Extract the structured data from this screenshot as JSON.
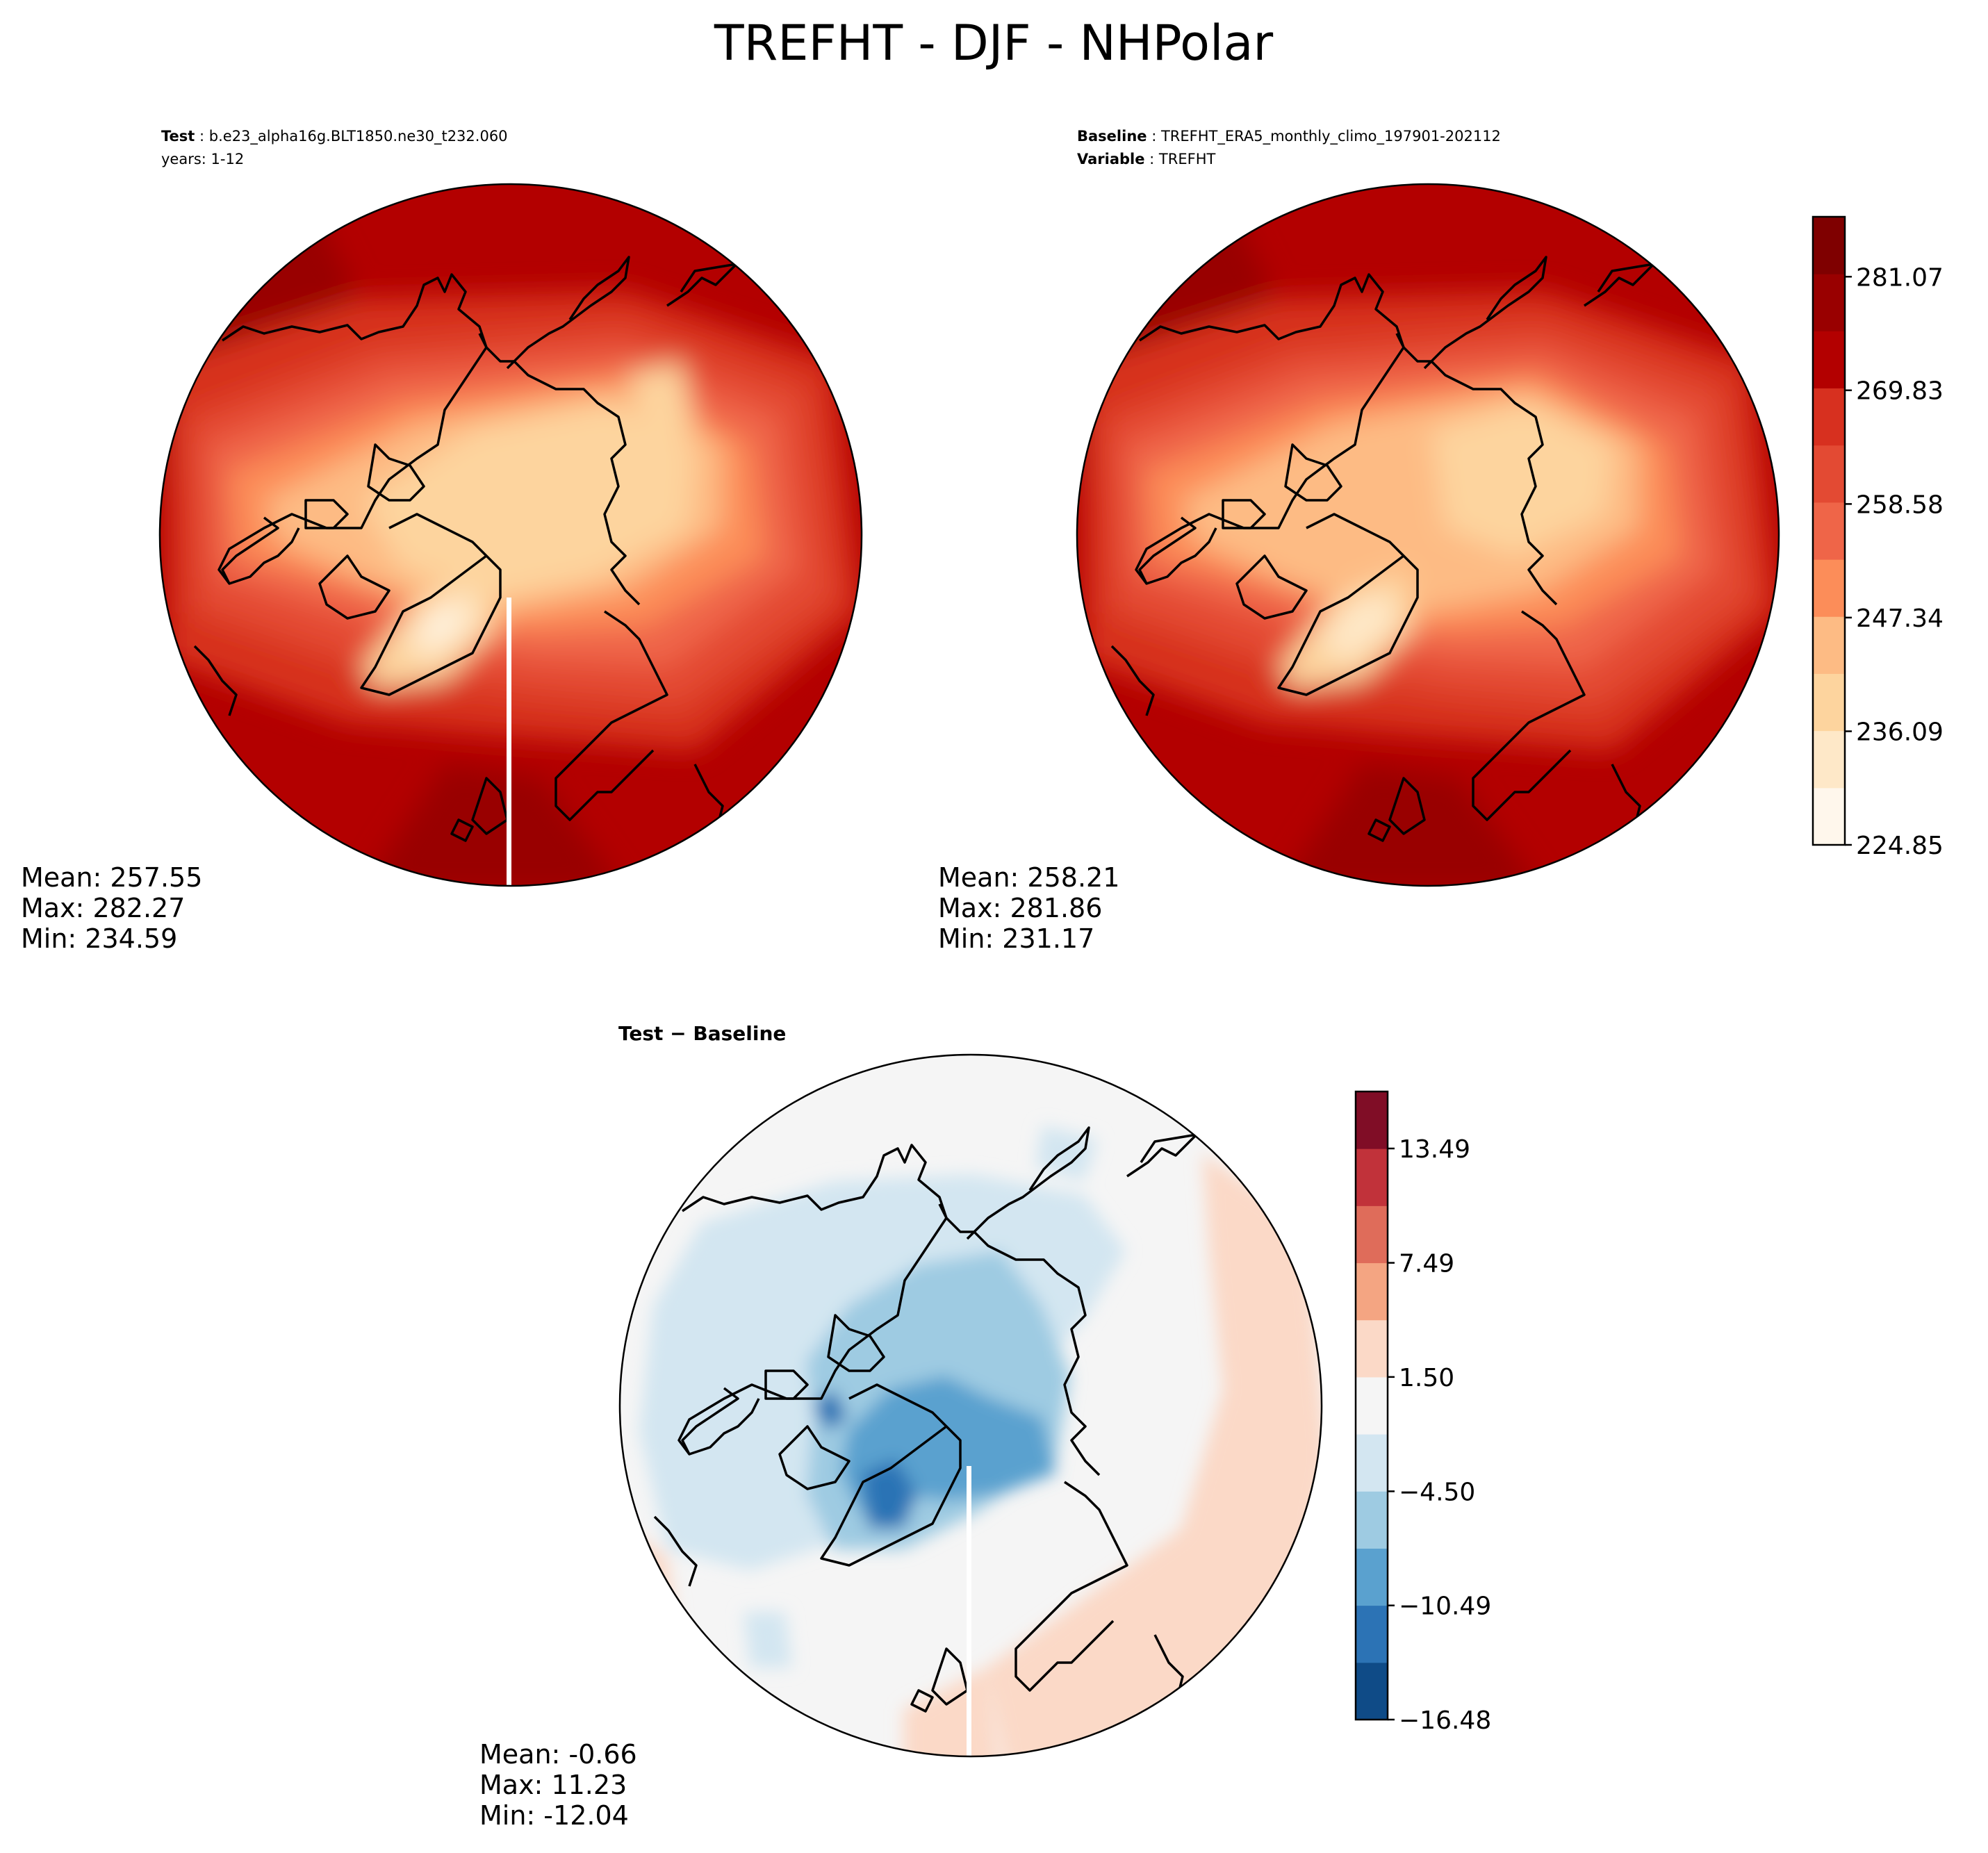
{
  "title": "TREFHT - DJF - NHPolar",
  "panels": {
    "test": {
      "label_key": "Test",
      "label_value": "b.e23_alpha16g.BLT1850.ne30_t232.060",
      "years": "years: 1-12",
      "stats": {
        "mean": "Mean: 257.55",
        "max": "Max: 282.27",
        "min": "Min: 234.59"
      }
    },
    "baseline": {
      "label_key": "Baseline",
      "label_value": "TREFHT_ERA5_monthly_climo_197901-202112",
      "var_key": "Variable",
      "var_value": "TREFHT",
      "stats": {
        "mean": "Mean: 258.21",
        "max": "Max: 281.86",
        "min": "Min: 231.17"
      }
    },
    "diff": {
      "title": "Test − Baseline",
      "stats": {
        "mean": "Mean: -0.66",
        "max": "Max: 11.23",
        "min": "Min: -12.04"
      }
    }
  },
  "chart_data": [
    {
      "type": "heatmap",
      "title": "Test: b.e23_alpha16g.BLT1850.ne30_t232.060",
      "projection": "north polar stereographic",
      "colormap": "OrRd",
      "colorbar": {
        "range": [
          224.85,
          287
        ],
        "levels": 11,
        "ticks": [
          224.85,
          236.09,
          247.34,
          258.58,
          269.83,
          281.07
        ],
        "tick_labels": [
          "224.85",
          "236.09",
          "247.34",
          "258.58",
          "269.83",
          "281.07"
        ],
        "colors": [
          "#fff7ec",
          "#fee8c8",
          "#fdd49e",
          "#fdbb84",
          "#fc8d59",
          "#ef6548",
          "#e34a33",
          "#d7301f",
          "#b30000",
          "#990000",
          "#7f0000"
        ]
      },
      "stats": {
        "mean": 257.55,
        "max": 282.27,
        "min": 234.59
      }
    },
    {
      "type": "heatmap",
      "title": "Baseline: TREFHT_ERA5_monthly_climo_197901-202112",
      "projection": "north polar stereographic",
      "colormap": "OrRd",
      "colorbar": "shared with Test panel",
      "stats": {
        "mean": 258.21,
        "max": 281.86,
        "min": 231.17
      }
    },
    {
      "type": "heatmap",
      "title": "Test − Baseline",
      "projection": "north polar stereographic",
      "colormap": "RdBu_r",
      "colorbar": {
        "range": [
          -16.48,
          16.48
        ],
        "levels": 11,
        "ticks": [
          -16.48,
          -10.49,
          -4.5,
          1.5,
          7.49,
          13.49
        ],
        "tick_labels": [
          "−16.48",
          "−10.49",
          "−4.50",
          "1.50",
          "7.49",
          "13.49"
        ],
        "colors": [
          "#0f4b87",
          "#2c73b5",
          "#5aa1cf",
          "#9ecbe2",
          "#d3e6f1",
          "#f5f5f5",
          "#fbd9c7",
          "#f4a582",
          "#df6c5a",
          "#c1323a",
          "#800d26"
        ]
      },
      "stats": {
        "mean": -0.66,
        "max": 11.23,
        "min": -12.04
      }
    }
  ]
}
